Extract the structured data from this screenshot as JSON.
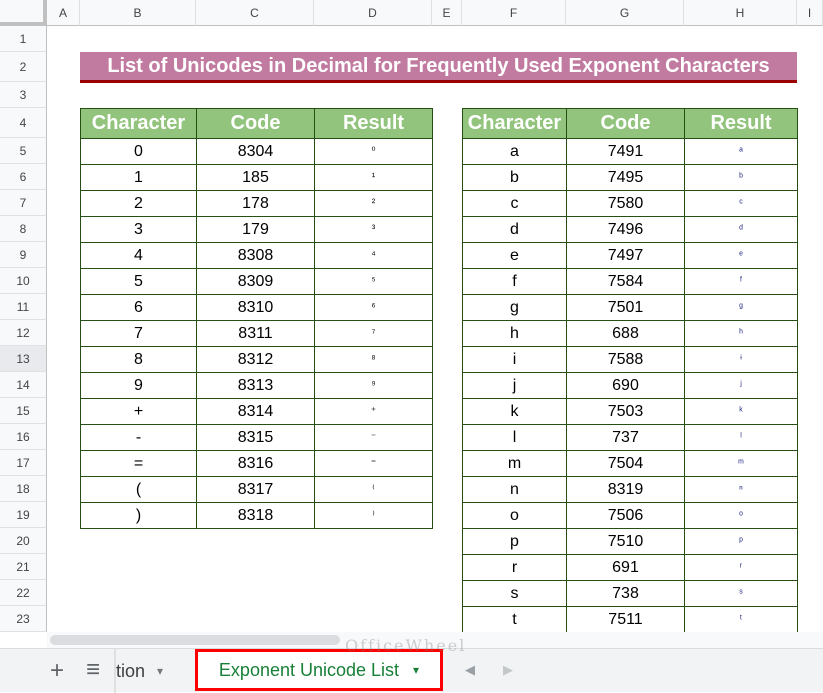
{
  "columns": [
    "A",
    "B",
    "C",
    "D",
    "E",
    "F",
    "G",
    "H",
    "I"
  ],
  "rows": [
    "1",
    "2",
    "3",
    "4",
    "5",
    "6",
    "7",
    "8",
    "9",
    "10",
    "11",
    "12",
    "13",
    "14",
    "15",
    "16",
    "17",
    "18",
    "19",
    "20",
    "21",
    "22",
    "23"
  ],
  "title": "List of Unicodes in Decimal for Frequently Used Exponent Characters",
  "left_table": {
    "headers": [
      "Character",
      "Code",
      "Result"
    ],
    "rows": [
      [
        "0",
        "8304",
        "⁰"
      ],
      [
        "1",
        "185",
        "¹"
      ],
      [
        "2",
        "178",
        "²"
      ],
      [
        "3",
        "179",
        "³"
      ],
      [
        "4",
        "8308",
        "⁴"
      ],
      [
        "5",
        "8309",
        "⁵"
      ],
      [
        "6",
        "8310",
        "⁶"
      ],
      [
        "7",
        "8311",
        "⁷"
      ],
      [
        "8",
        "8312",
        "⁸"
      ],
      [
        "9",
        "8313",
        "⁹"
      ],
      [
        "+",
        "8314",
        "⁺"
      ],
      [
        "-",
        "8315",
        "⁻"
      ],
      [
        "=",
        "8316",
        "⁼"
      ],
      [
        "(",
        "8317",
        "⁽"
      ],
      [
        ")",
        "8318",
        "⁾"
      ]
    ]
  },
  "right_table": {
    "headers": [
      "Character",
      "Code",
      "Result"
    ],
    "rows": [
      [
        "a",
        "7491",
        "ᵃ"
      ],
      [
        "b",
        "7495",
        "ᵇ"
      ],
      [
        "c",
        "7580",
        "ᶜ"
      ],
      [
        "d",
        "7496",
        "ᵈ"
      ],
      [
        "e",
        "7497",
        "ᵉ"
      ],
      [
        "f",
        "7584",
        "ᶠ"
      ],
      [
        "g",
        "7501",
        "ᵍ"
      ],
      [
        "h",
        "688",
        "ʰ"
      ],
      [
        "i",
        "7588",
        "ᶤ"
      ],
      [
        "j",
        "690",
        "ʲ"
      ],
      [
        "k",
        "7503",
        "ᵏ"
      ],
      [
        "l",
        "737",
        "ˡ"
      ],
      [
        "m",
        "7504",
        "ᵐ"
      ],
      [
        "n",
        "8319",
        "ⁿ"
      ],
      [
        "o",
        "7506",
        "ᵒ"
      ],
      [
        "p",
        "7510",
        "ᵖ"
      ],
      [
        "r",
        "691",
        "ʳ"
      ],
      [
        "s",
        "738",
        "ˢ"
      ],
      [
        "t",
        "7511",
        "ᵗ"
      ]
    ]
  },
  "tabs": {
    "add": "+",
    "all_sheets": "≡",
    "prev_sheet": "tion",
    "active": "Exponent Unicode List",
    "dropdown": "▾",
    "scroll_left": "◀",
    "scroll_right": "▶"
  },
  "watermark": "OfficeWheel",
  "colors": {
    "title_bg": "#c27ba0",
    "header_bg": "#93c47d",
    "border": "#274e13",
    "active_tab": "#188038",
    "highlight": "#ff0000"
  }
}
